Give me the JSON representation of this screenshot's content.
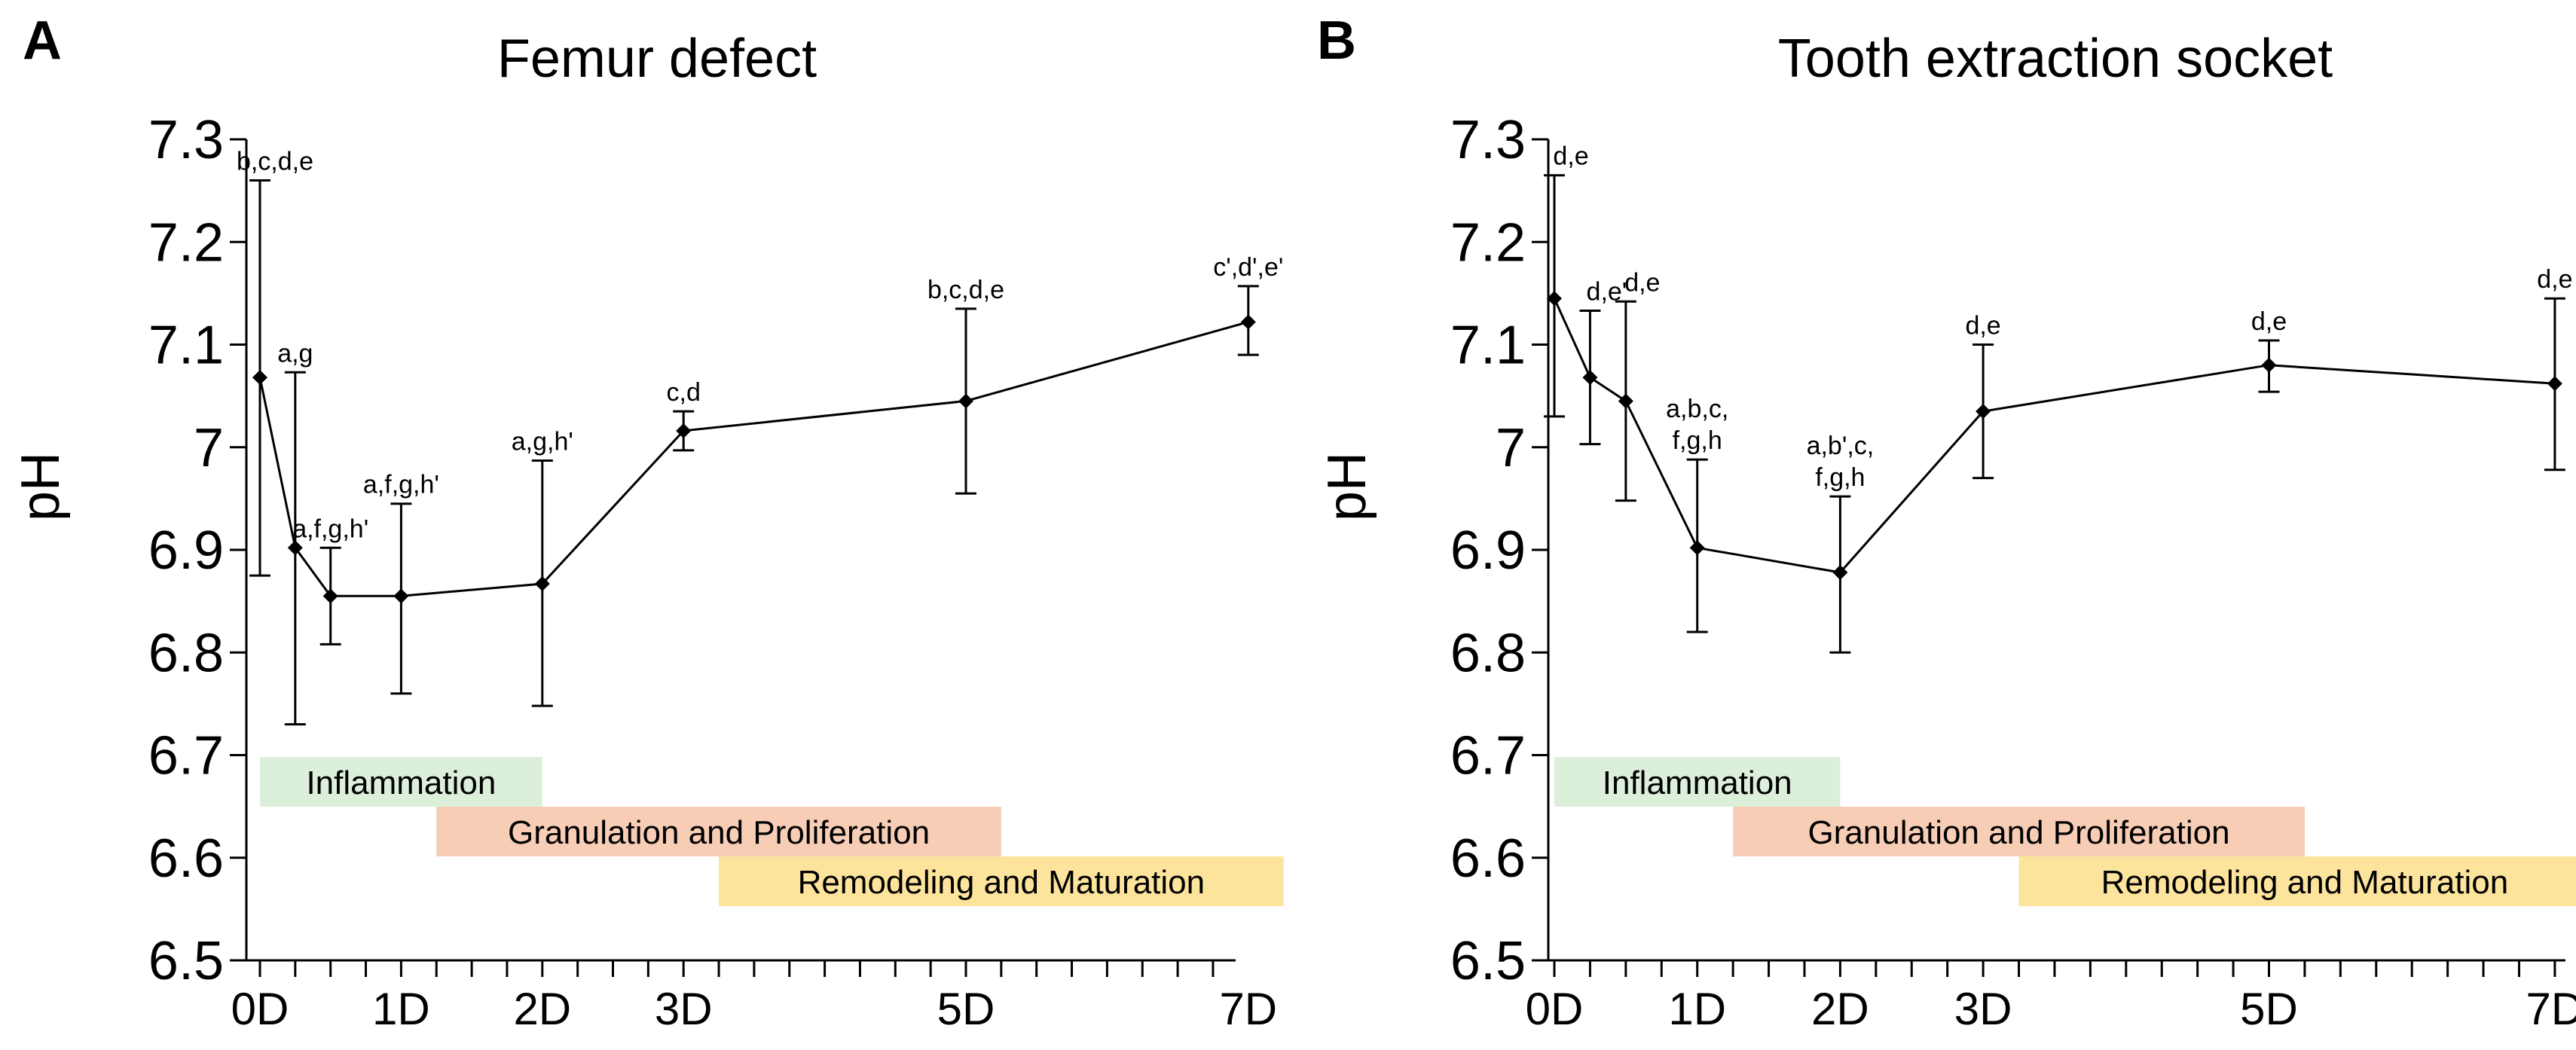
{
  "chart_data": [
    {
      "panel": "A",
      "type": "line",
      "title": "Femur defect",
      "xlabel": "",
      "ylabel": "pH",
      "ylim": [
        6.5,
        7.3
      ],
      "yticks": [
        6.5,
        6.6,
        6.7,
        6.8,
        6.9,
        7.0,
        7.1,
        7.2,
        7.3
      ],
      "ytick_labels": [
        "6.5",
        "6.6",
        "6.7",
        "6.8",
        "6.9",
        "7",
        "7.1",
        "7.2",
        "7.3"
      ],
      "xlim": [
        0,
        7
      ],
      "xticks": [
        0,
        1,
        2,
        3,
        5,
        7
      ],
      "xtick_labels": [
        "0D",
        "1D",
        "2D",
        "3D",
        "5D",
        "7D"
      ],
      "grid": false,
      "series": [
        {
          "name": "pH",
          "x": [
            0,
            0.25,
            0.5,
            1,
            2,
            3,
            5,
            7
          ],
          "values": [
            7.068,
            6.902,
            6.855,
            6.855,
            6.867,
            7.016,
            7.045,
            7.122
          ],
          "error_low": [
            6.875,
            6.73,
            6.808,
            6.76,
            6.748,
            6.997,
            6.955,
            7.09
          ],
          "error_high": [
            7.26,
            7.073,
            6.902,
            6.945,
            6.987,
            7.035,
            7.135,
            7.157
          ],
          "sig_labels": [
            [
              "b,c,d,e"
            ],
            [
              "a,g"
            ],
            [
              "a,f,g,h'"
            ],
            [
              "a,f,g,h'"
            ],
            [
              "a,g,h'"
            ],
            [
              "c,d"
            ],
            [
              "b,c,d,e"
            ],
            [
              "c',d',e'"
            ]
          ]
        }
      ],
      "phases": [
        {
          "label": "Inflammation",
          "start": 0,
          "end": 2,
          "level": 0,
          "color": "#dcefdb"
        },
        {
          "label": "Granulation and Proliferation",
          "start": 1.25,
          "end": 5.25,
          "level": 1,
          "color": "#f8cdb6"
        },
        {
          "label": "Remodeling and Maturation",
          "start": 3.25,
          "end": 7.25,
          "level": 2,
          "color": "#fde49c"
        }
      ]
    },
    {
      "panel": "B",
      "type": "line",
      "title": "Tooth extraction socket",
      "xlabel": "",
      "ylabel": "pH",
      "ylim": [
        6.5,
        7.3
      ],
      "yticks": [
        6.5,
        6.6,
        6.7,
        6.8,
        6.9,
        7.0,
        7.1,
        7.2,
        7.3
      ],
      "ytick_labels": [
        "6.5",
        "6.6",
        "6.7",
        "6.8",
        "6.9",
        "7",
        "7.1",
        "7.2",
        "7.3"
      ],
      "xlim": [
        0,
        7
      ],
      "xticks": [
        0,
        1,
        2,
        3,
        5,
        7
      ],
      "xtick_labels": [
        "0D",
        "1D",
        "2D",
        "3D",
        "5D",
        "7D"
      ],
      "grid": false,
      "series": [
        {
          "name": "pH",
          "x": [
            0,
            0.25,
            0.5,
            1,
            2,
            3,
            5,
            7
          ],
          "values": [
            7.145,
            7.068,
            7.045,
            6.902,
            6.878,
            7.035,
            7.08,
            7.062
          ],
          "error_low": [
            7.03,
            7.003,
            6.948,
            6.82,
            6.8,
            6.97,
            7.054,
            6.978
          ],
          "error_high": [
            7.265,
            7.133,
            7.142,
            6.988,
            6.952,
            7.1,
            7.104,
            7.145
          ],
          "sig_labels": [
            [
              "d,e"
            ],
            [
              "d,e'"
            ],
            [
              "d,e"
            ],
            [
              "a,b,c,",
              "f,g,h"
            ],
            [
              "a,b',c,",
              "f,g,h"
            ],
            [
              "d,e"
            ],
            [
              "d,e"
            ],
            [
              "d,e"
            ]
          ]
        }
      ],
      "phases": [
        {
          "label": "Inflammation",
          "start": 0,
          "end": 2,
          "level": 0,
          "color": "#dcefdb"
        },
        {
          "label": "Granulation and Proliferation",
          "start": 1.25,
          "end": 5.25,
          "level": 1,
          "color": "#f8cdb6"
        },
        {
          "label": "Remodeling and Maturation",
          "start": 3.25,
          "end": 7.25,
          "level": 2,
          "color": "#fde49c"
        }
      ]
    }
  ]
}
